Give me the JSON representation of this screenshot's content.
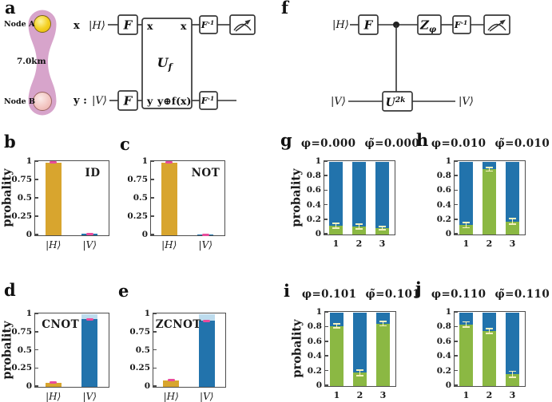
{
  "colors": {
    "gold": "#D8A52E",
    "blue": "#2273AC",
    "light_blue": "#BDDCEE",
    "green": "#8BB843",
    "pink": "#EA4C9C",
    "pale_yellow": "#F5F1BE",
    "plum": "#D7A4CB",
    "node_a_yellow": "#F4D021",
    "node_b_pink": "#F3C5C1",
    "axis": "#4D4D4D",
    "ink": "#1A1A1A"
  },
  "letters": {
    "a": "a",
    "b": "b",
    "c": "c",
    "d": "d",
    "e": "e",
    "f": "f",
    "g": "g",
    "h": "h",
    "i": "i",
    "j": "j"
  },
  "panel_a": {
    "node_a": "Node A",
    "node_b": "Node B",
    "distance": "7.0km",
    "wire_x_label": "x",
    "wire_y_label": "y :",
    "ket_h": "|H⟩",
    "ket_v": "|V⟩",
    "gate_f": "F",
    "finv_base": "F",
    "finv_sup": "-1",
    "uf_base": "U",
    "uf_sub": "f",
    "box_in_top": "x",
    "box_out_top": "x",
    "box_in_bottom": "y",
    "box_out_bottom": "y⊕f(x)"
  },
  "panel_f": {
    "ket_h": "|H⟩",
    "ket_v_in": "|V⟩",
    "ket_v_out": "|V⟩",
    "gate_f": "F",
    "z_base": "Z",
    "z_sub": "φ",
    "finv_base": "F",
    "finv_sup": "-1",
    "u_base": "U",
    "u_sup": "2k"
  },
  "chart_data": [
    {
      "id": "b",
      "type": "bar",
      "label": "ID",
      "ylabel": "probality",
      "ylim": [
        0,
        1
      ],
      "yticks": [
        "0",
        "0.25",
        "0.5",
        "0.75",
        "1"
      ],
      "categories": [
        "|H⟩",
        "|V⟩"
      ],
      "xtick_style": "ket",
      "bars": [
        {
          "segments": [
            {
              "to": 0.99,
              "color": "gold"
            }
          ],
          "error": {
            "center": 0.99,
            "spread": 0.012,
            "color": "pink",
            "caps": false
          }
        },
        {
          "segments": [
            {
              "to": 0.02,
              "color": "blue"
            }
          ],
          "error": {
            "center": 0.02,
            "spread": 0.01,
            "color": "pink",
            "caps": false
          }
        }
      ]
    },
    {
      "id": "c",
      "type": "bar",
      "label": "NOT",
      "ylim": [
        0,
        1
      ],
      "yticks": [
        "0",
        "0.25",
        "0.5",
        "0.75",
        "1"
      ],
      "categories": [
        "|H⟩",
        "|V⟩"
      ],
      "xtick_style": "ket",
      "bars": [
        {
          "segments": [
            {
              "to": 0.99,
              "color": "gold"
            }
          ],
          "error": {
            "center": 0.99,
            "spread": 0.012,
            "color": "pink",
            "caps": false
          }
        },
        {
          "segments": [
            {
              "to": 0.01,
              "color": "blue"
            }
          ],
          "error": {
            "center": 0.01,
            "spread": 0.008,
            "color": "pink",
            "caps": false
          }
        }
      ]
    },
    {
      "id": "d",
      "type": "bar",
      "label": "CNOT",
      "ylabel": "probality",
      "ylim": [
        0,
        1
      ],
      "yticks": [
        "0",
        "0.25",
        "0.5",
        "0.75",
        "1"
      ],
      "categories": [
        "|H⟩",
        "|V⟩"
      ],
      "xtick_style": "ket",
      "bars": [
        {
          "segments": [
            {
              "to": 0.06,
              "color": "gold"
            }
          ],
          "error": {
            "center": 0.06,
            "spread": 0.015,
            "color": "pink",
            "caps": false
          }
        },
        {
          "segments": [
            {
              "to": 0.93,
              "color": "blue"
            },
            {
              "to": 1,
              "color": "light_blue"
            }
          ],
          "error": {
            "center": 0.93,
            "spread": 0.012,
            "color": "pink",
            "caps": false
          }
        }
      ]
    },
    {
      "id": "e",
      "type": "bar",
      "label": "ZCNOT",
      "ylim": [
        0,
        1
      ],
      "yticks": [
        "0",
        "0.25",
        "0.5",
        "0.75",
        "1"
      ],
      "categories": [
        "|H⟩",
        "|V⟩"
      ],
      "xtick_style": "ket",
      "bars": [
        {
          "segments": [
            {
              "to": 0.09,
              "color": "gold"
            }
          ],
          "error": {
            "center": 0.09,
            "spread": 0.015,
            "color": "pink",
            "caps": false
          }
        },
        {
          "segments": [
            {
              "to": 0.91,
              "color": "blue"
            },
            {
              "to": 1,
              "color": "light_blue"
            }
          ],
          "error": {
            "center": 0.91,
            "spread": 0.012,
            "color": "pink",
            "caps": false
          }
        }
      ]
    },
    {
      "id": "g",
      "type": "stacked-bar",
      "title": "φ=0.000 φ̃=0.000",
      "ylabel": "probality",
      "ylim": [
        0,
        1
      ],
      "yticks": [
        "0",
        "0.2",
        "0.4",
        "0.6",
        "0.8",
        "1"
      ],
      "categories": [
        "1",
        "2",
        "3"
      ],
      "xtick_style": "num",
      "bars": [
        {
          "segments": [
            {
              "to": 0.12,
              "color": "green"
            },
            {
              "to": 1,
              "color": "blue"
            }
          ],
          "error": {
            "center": 0.12,
            "spread": 0.035,
            "color": "pale_yellow",
            "caps": true
          }
        },
        {
          "segments": [
            {
              "to": 0.11,
              "color": "green"
            },
            {
              "to": 1,
              "color": "blue"
            }
          ],
          "error": {
            "center": 0.11,
            "spread": 0.03,
            "color": "pale_yellow",
            "caps": true
          }
        },
        {
          "segments": [
            {
              "to": 0.09,
              "color": "green"
            },
            {
              "to": 1,
              "color": "blue"
            }
          ],
          "error": {
            "center": 0.09,
            "spread": 0.022,
            "color": "pale_yellow",
            "caps": true
          }
        }
      ]
    },
    {
      "id": "h",
      "type": "stacked-bar",
      "title": "φ=0.010 φ̃=0.010",
      "ylim": [
        0,
        1
      ],
      "yticks": [
        "0",
        "0.2",
        "0.4",
        "0.6",
        "0.8",
        "1"
      ],
      "categories": [
        "1",
        "2",
        "3"
      ],
      "xtick_style": "num",
      "bars": [
        {
          "segments": [
            {
              "to": 0.13,
              "color": "green"
            },
            {
              "to": 1,
              "color": "blue"
            }
          ],
          "error": {
            "center": 0.13,
            "spread": 0.035,
            "color": "pale_yellow",
            "caps": true
          }
        },
        {
          "segments": [
            {
              "to": 0.9,
              "color": "green"
            },
            {
              "to": 1,
              "color": "blue"
            }
          ],
          "error": {
            "center": 0.9,
            "spread": 0.025,
            "color": "pale_yellow",
            "caps": true
          }
        },
        {
          "segments": [
            {
              "to": 0.18,
              "color": "green"
            },
            {
              "to": 1,
              "color": "blue"
            }
          ],
          "error": {
            "center": 0.18,
            "spread": 0.04,
            "color": "pale_yellow",
            "caps": true
          }
        }
      ]
    },
    {
      "id": "i",
      "type": "stacked-bar",
      "title": "φ=0.101 φ̃=0.101",
      "ylabel": "probality",
      "ylim": [
        0,
        1
      ],
      "yticks": [
        "0",
        "0.2",
        "0.4",
        "0.6",
        "0.8",
        "1"
      ],
      "categories": [
        "1",
        "2",
        "3"
      ],
      "xtick_style": "num",
      "bars": [
        {
          "segments": [
            {
              "to": 0.82,
              "color": "green"
            },
            {
              "to": 1,
              "color": "blue"
            }
          ],
          "error": {
            "center": 0.82,
            "spread": 0.028,
            "color": "pale_yellow",
            "caps": true
          }
        },
        {
          "segments": [
            {
              "to": 0.18,
              "color": "green"
            },
            {
              "to": 1,
              "color": "blue"
            }
          ],
          "error": {
            "center": 0.18,
            "spread": 0.04,
            "color": "pale_yellow",
            "caps": true
          }
        },
        {
          "segments": [
            {
              "to": 0.85,
              "color": "green"
            },
            {
              "to": 1,
              "color": "blue"
            }
          ],
          "error": {
            "center": 0.85,
            "spread": 0.028,
            "color": "pale_yellow",
            "caps": true
          }
        }
      ]
    },
    {
      "id": "j",
      "type": "stacked-bar",
      "title": "φ=0.110 φ̃=0.110",
      "ylim": [
        0,
        1
      ],
      "yticks": [
        "0",
        "0.2",
        "0.4",
        "0.6",
        "0.8",
        "1"
      ],
      "categories": [
        "1",
        "2",
        "3"
      ],
      "xtick_style": "num",
      "bars": [
        {
          "segments": [
            {
              "to": 0.84,
              "color": "green"
            },
            {
              "to": 1,
              "color": "blue"
            }
          ],
          "error": {
            "center": 0.84,
            "spread": 0.035,
            "color": "pale_yellow",
            "caps": true
          }
        },
        {
          "segments": [
            {
              "to": 0.75,
              "color": "green"
            },
            {
              "to": 1,
              "color": "blue"
            }
          ],
          "error": {
            "center": 0.75,
            "spread": 0.03,
            "color": "pale_yellow",
            "caps": true
          }
        },
        {
          "segments": [
            {
              "to": 0.16,
              "color": "green"
            },
            {
              "to": 1,
              "color": "blue"
            }
          ],
          "error": {
            "center": 0.16,
            "spread": 0.04,
            "color": "pale_yellow",
            "caps": true
          }
        }
      ]
    }
  ]
}
